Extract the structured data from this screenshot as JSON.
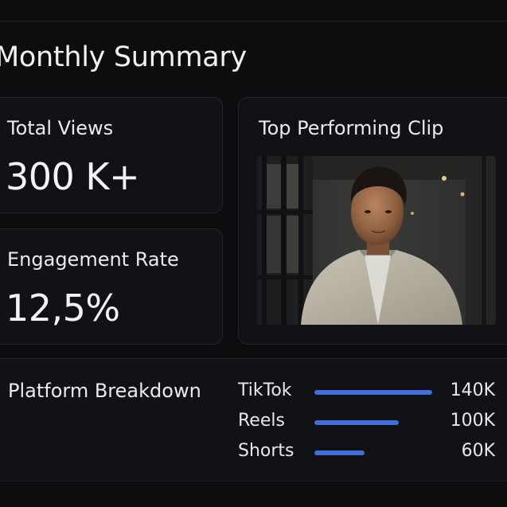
{
  "page": {
    "title": "Monthly Summary"
  },
  "total_views": {
    "label": "Total Views",
    "value": "300 K+"
  },
  "engagement": {
    "label": "Engagement Rate",
    "value": "12,5%"
  },
  "top_clip": {
    "label": "Top Performing Clip"
  },
  "platform_breakdown": {
    "title": "Platform Breakdown",
    "max_value": 140,
    "items": [
      {
        "name": "TikTok",
        "value_label": "140K",
        "value": 140
      },
      {
        "name": "Reels",
        "value_label": "100K",
        "value": 100
      },
      {
        "name": "Shorts",
        "value_label": "60K",
        "value": 60
      }
    ]
  },
  "colors": {
    "background": "#0c0d0f",
    "card": "#111215",
    "bar": "#3f6fd8"
  }
}
